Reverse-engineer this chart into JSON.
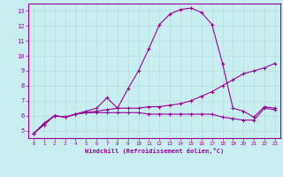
{
  "xlabel": "Windchill (Refroidissement éolien,°C)",
  "bg_color": "#c8eef0",
  "line_color": "#990099",
  "grid_color": "#b8dde0",
  "axis_color": "#990099",
  "tick_color": "#990099",
  "xlim": [
    -0.5,
    23.5
  ],
  "ylim": [
    4.5,
    13.5
  ],
  "xticks": [
    0,
    1,
    2,
    3,
    4,
    5,
    6,
    7,
    8,
    9,
    10,
    11,
    12,
    13,
    14,
    15,
    16,
    17,
    18,
    19,
    20,
    21,
    22,
    23
  ],
  "yticks": [
    5,
    6,
    7,
    8,
    9,
    10,
    11,
    12,
    13
  ],
  "line1_x": [
    0,
    1,
    2,
    3,
    4,
    5,
    6,
    7,
    8,
    9,
    10,
    11,
    12,
    13,
    14,
    15,
    16,
    17,
    18,
    19,
    20,
    21,
    22,
    23
  ],
  "line1_y": [
    4.8,
    5.4,
    6.0,
    5.9,
    6.1,
    6.3,
    6.5,
    7.2,
    6.5,
    7.8,
    9.0,
    10.5,
    12.1,
    12.8,
    13.1,
    13.2,
    12.9,
    12.1,
    9.5,
    6.5,
    6.3,
    5.9,
    6.6,
    6.5
  ],
  "line2_x": [
    0,
    1,
    2,
    3,
    4,
    5,
    6,
    7,
    8,
    9,
    10,
    11,
    12,
    13,
    14,
    15,
    16,
    17,
    18,
    19,
    20,
    21,
    22,
    23
  ],
  "line2_y": [
    4.8,
    5.5,
    6.0,
    5.9,
    6.1,
    6.2,
    6.3,
    6.4,
    6.5,
    6.5,
    6.5,
    6.6,
    6.6,
    6.7,
    6.8,
    7.0,
    7.3,
    7.6,
    8.0,
    8.4,
    8.8,
    9.0,
    9.2,
    9.5
  ],
  "line3_x": [
    0,
    1,
    2,
    3,
    4,
    5,
    6,
    7,
    8,
    9,
    10,
    11,
    12,
    13,
    14,
    15,
    16,
    17,
    18,
    19,
    20,
    21,
    22,
    23
  ],
  "line3_y": [
    4.8,
    5.4,
    6.0,
    5.9,
    6.1,
    6.2,
    6.2,
    6.2,
    6.2,
    6.2,
    6.2,
    6.1,
    6.1,
    6.1,
    6.1,
    6.1,
    6.1,
    6.1,
    5.9,
    5.8,
    5.7,
    5.7,
    6.5,
    6.4
  ]
}
